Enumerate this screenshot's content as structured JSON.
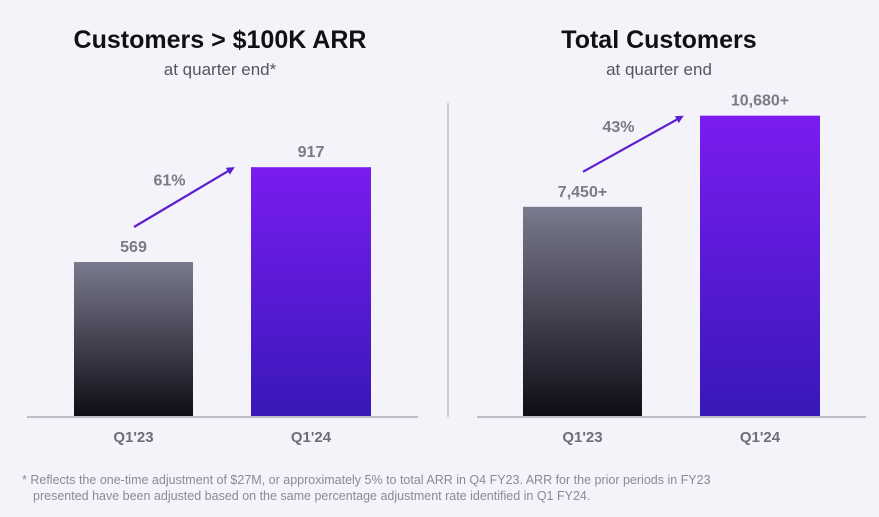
{
  "chart_data": [
    {
      "type": "bar",
      "title": "Customers > $100K ARR",
      "subtitle": "at quarter end*",
      "categories": [
        "Q1'23",
        "Q1'24"
      ],
      "values": [
        569,
        917
      ],
      "data_labels": [
        "569",
        "917"
      ],
      "growth_label": "61%",
      "ylim": [
        0,
        1450
      ],
      "colors": {
        "start": [
          "#7a7a8e",
          "#0d0d16"
        ],
        "end": [
          "#7a1cf0",
          "#3818b8"
        ]
      }
    },
    {
      "type": "bar",
      "title": "Total Customers",
      "subtitle": "at quarter end",
      "categories": [
        "Q1'23",
        "Q1'24"
      ],
      "values": [
        7450,
        10680
      ],
      "data_labels": [
        "7,450+",
        "10,680+"
      ],
      "growth_label": "43%",
      "ylim": [
        0,
        14000
      ],
      "colors": {
        "start": [
          "#7a7a8e",
          "#0d0d16"
        ],
        "end": [
          "#7a1cf0",
          "#3818b8"
        ]
      }
    }
  ],
  "footnote": {
    "line1": "* Reflects the one-time adjustment of $27M, or approximately 5% to total ARR in Q4 FY23. ARR for the prior periods in FY23",
    "line2": "presented have been adjusted based on the same percentage adjustment rate identified in Q1 FY24."
  },
  "colors": {
    "arrow": "#5b1fd0",
    "label": "#7a7a88",
    "axis": "#bdbdc8",
    "title": "#111114"
  }
}
